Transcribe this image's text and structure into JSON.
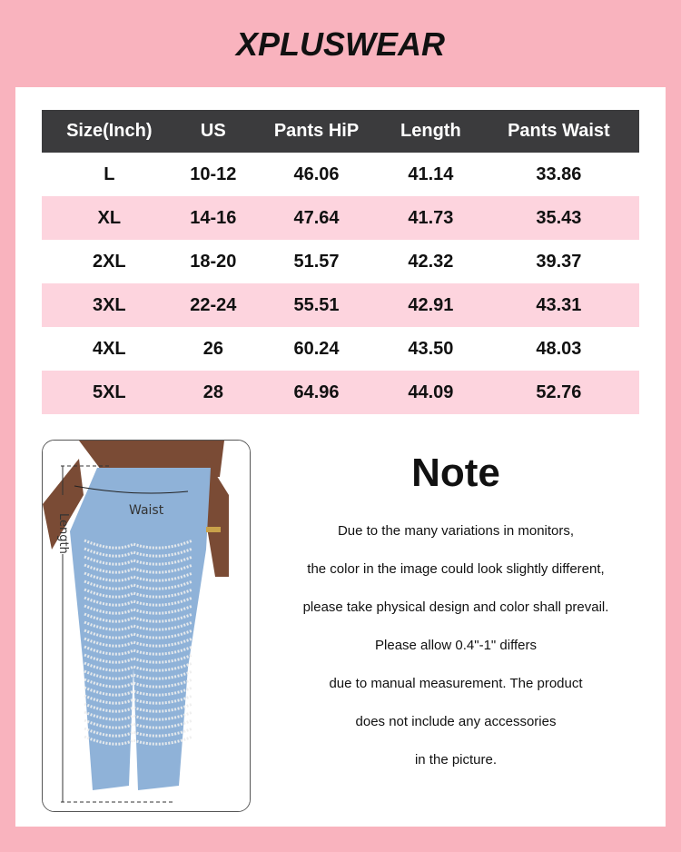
{
  "brand": "XPLUSWEAR",
  "table": {
    "headers": [
      "Size(Inch)",
      "US",
      "Pants HiP",
      "Length",
      "Pants Waist"
    ],
    "rows": [
      [
        "L",
        "10-12",
        "46.06",
        "41.14",
        "33.86"
      ],
      [
        "XL",
        "14-16",
        "47.64",
        "41.73",
        "35.43"
      ],
      [
        "2XL",
        "18-20",
        "51.57",
        "42.32",
        "39.37"
      ],
      [
        "3XL",
        "22-24",
        "55.51",
        "42.91",
        "43.31"
      ],
      [
        "4XL",
        "26",
        "60.24",
        "43.50",
        "48.03"
      ],
      [
        "5XL",
        "28",
        "64.96",
        "44.09",
        "52.76"
      ]
    ]
  },
  "photo": {
    "length_label": "Length",
    "waist_label": "Waist"
  },
  "note": {
    "title": "Note",
    "lines": [
      "Due to the many variations in monitors,",
      "the color in the image could look slightly different,",
      "please take physical design and color shall prevail.",
      "Please allow 0.4\"-1\" differs",
      "due to manual measurement. The product",
      "does not include any accessories",
      "in the picture."
    ]
  },
  "colors": {
    "background": "#f9b3be",
    "header": "#3b3b3d",
    "alt_row": "#fdd4de"
  }
}
